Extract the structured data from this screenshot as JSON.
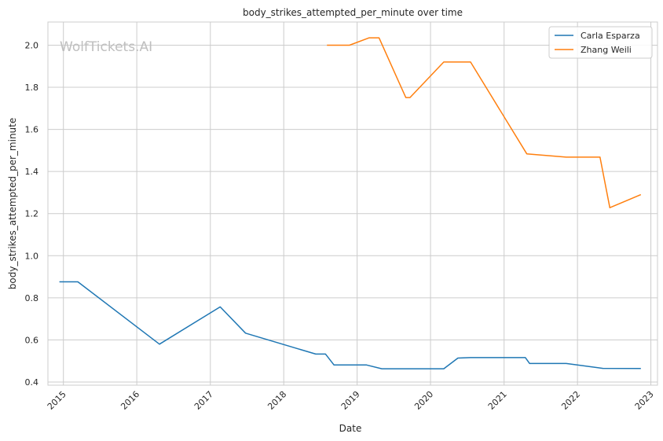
{
  "chart_data": {
    "type": "line",
    "title": "body_strikes_attempted_per_minute over time",
    "xlabel": "Date",
    "ylabel": "body_strikes_attempted_per_minute",
    "watermark": "WolfTickets.AI",
    "x_tick_labels": [
      "2015",
      "2016",
      "2017",
      "2018",
      "2019",
      "2020",
      "2021",
      "2022",
      "2023"
    ],
    "y_tick_labels": [
      "0.4",
      "0.6",
      "0.8",
      "1.0",
      "1.2",
      "1.4",
      "1.6",
      "1.8",
      "2.0"
    ],
    "xlim": [
      "2014-10-16",
      "2023-02-03"
    ],
    "ylim": [
      0.385,
      2.11
    ],
    "grid": true,
    "legend_position": "top-right",
    "series": [
      {
        "name": "Carla Esparza",
        "color": "#1f77b4",
        "points": [
          {
            "x": "2014-12-12",
            "y": 0.876
          },
          {
            "x": "2015-03-14",
            "y": 0.876
          },
          {
            "x": "2016-04-23",
            "y": 0.58
          },
          {
            "x": "2017-02-19",
            "y": 0.757
          },
          {
            "x": "2017-06-25",
            "y": 0.632
          },
          {
            "x": "2018-06-09",
            "y": 0.533
          },
          {
            "x": "2018-07-28",
            "y": 0.533
          },
          {
            "x": "2018-09-08",
            "y": 0.481
          },
          {
            "x": "2019-02-17",
            "y": 0.481
          },
          {
            "x": "2019-05-04",
            "y": 0.463
          },
          {
            "x": "2019-09-14",
            "y": 0.463
          },
          {
            "x": "2020-03-07",
            "y": 0.463
          },
          {
            "x": "2020-05-16",
            "y": 0.514
          },
          {
            "x": "2020-07-18",
            "y": 0.516
          },
          {
            "x": "2021-04-17",
            "y": 0.516
          },
          {
            "x": "2021-05-08",
            "y": 0.488
          },
          {
            "x": "2021-11-06",
            "y": 0.488
          },
          {
            "x": "2022-05-07",
            "y": 0.465
          },
          {
            "x": "2022-11-12",
            "y": 0.464
          }
        ]
      },
      {
        "name": "Zhang Weili",
        "color": "#ff7f0e",
        "points": [
          {
            "x": "2018-08-04",
            "y": 2.0
          },
          {
            "x": "2018-11-24",
            "y": 2.0
          },
          {
            "x": "2019-03-02",
            "y": 2.035
          },
          {
            "x": "2019-04-20",
            "y": 2.035
          },
          {
            "x": "2019-08-31",
            "y": 1.751
          },
          {
            "x": "2019-09-21",
            "y": 1.751
          },
          {
            "x": "2020-03-07",
            "y": 1.92
          },
          {
            "x": "2020-07-18",
            "y": 1.92
          },
          {
            "x": "2021-04-24",
            "y": 1.484
          },
          {
            "x": "2021-11-06",
            "y": 1.468
          },
          {
            "x": "2022-04-23",
            "y": 1.468
          },
          {
            "x": "2022-06-11",
            "y": 1.228
          },
          {
            "x": "2022-11-12",
            "y": 1.29
          }
        ]
      }
    ]
  }
}
